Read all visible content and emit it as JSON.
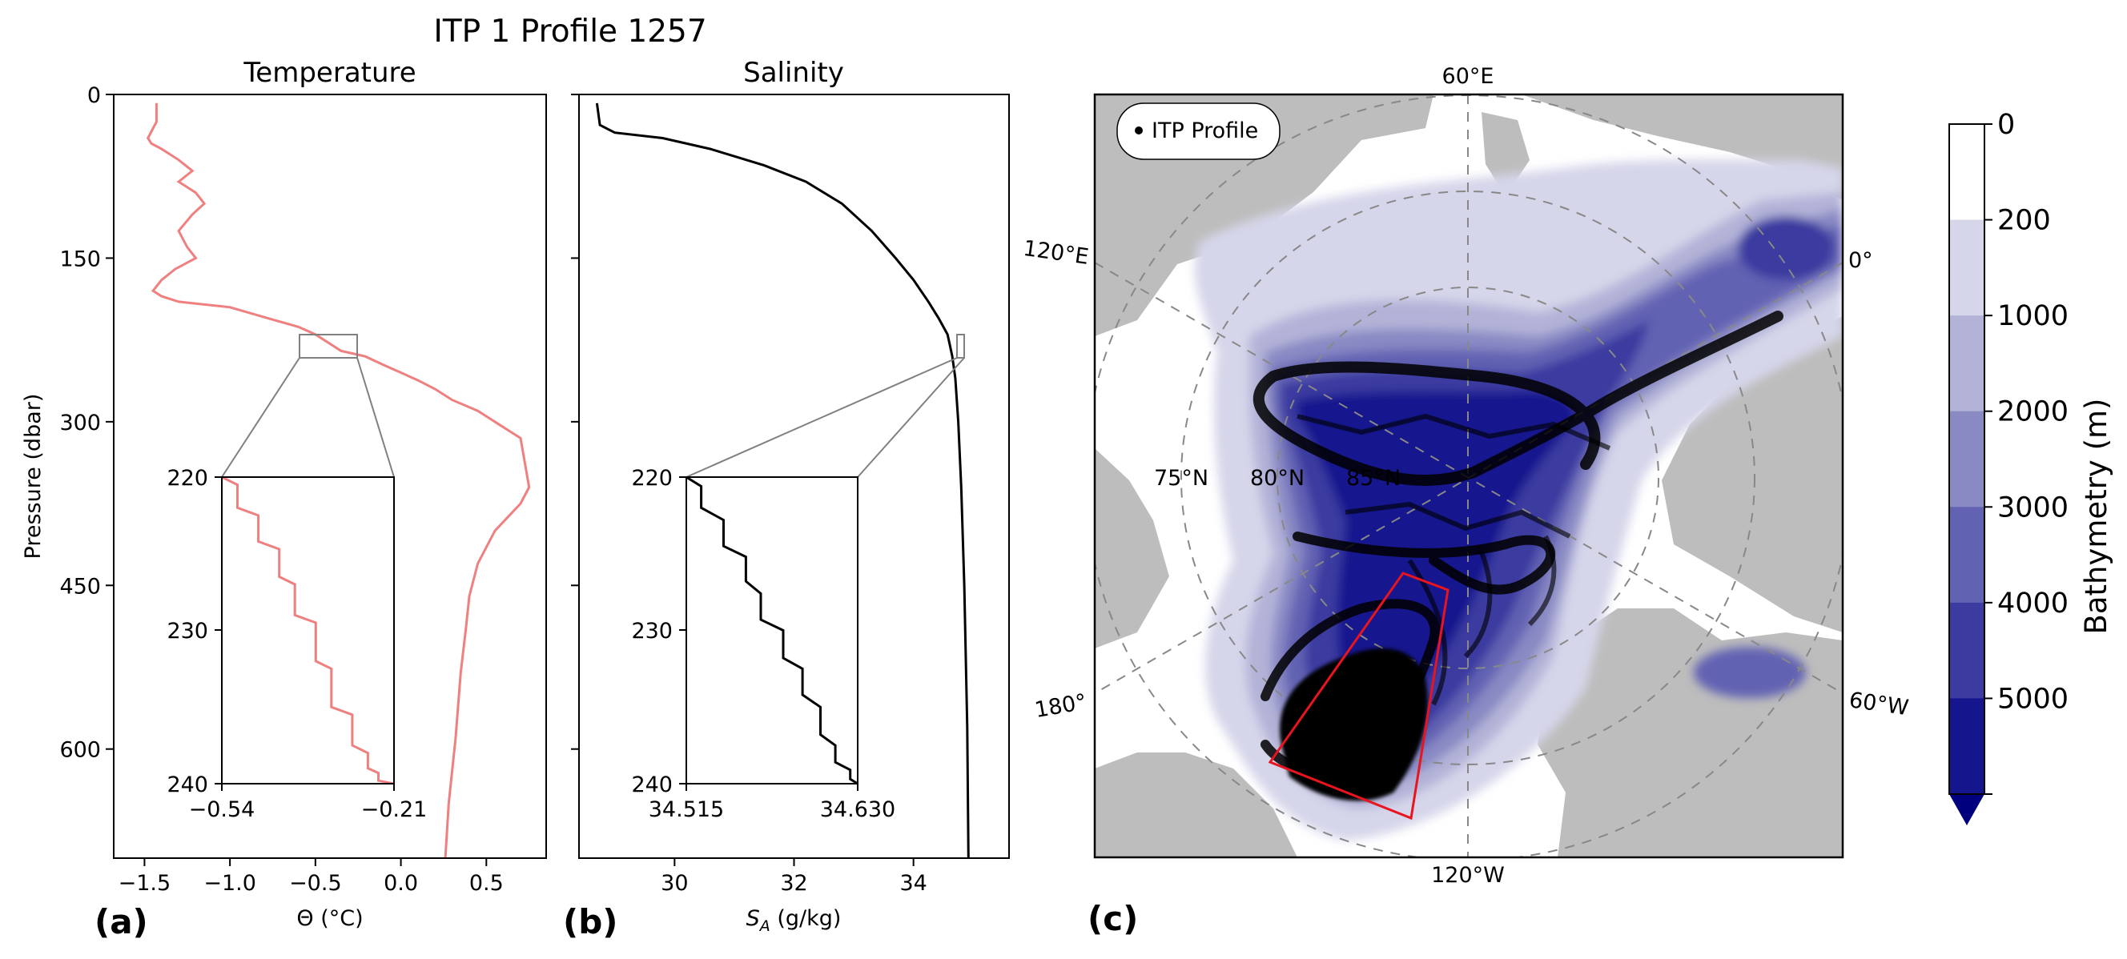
{
  "figure": {
    "suptitle": "ITP 1 Profile 1257",
    "panel_labels": [
      "(a)",
      "(b)",
      "(c)"
    ]
  },
  "colors": {
    "temperature_line": "#f07f7f",
    "salinity_line": "#000000",
    "inset_connector": "#808080",
    "land": "#bdbdbd",
    "region_box": "#e8141e",
    "track_points": "#000000"
  },
  "chart_data": [
    {
      "type": "line",
      "panel": "(a)",
      "title": "Temperature",
      "xlabel": "Θ (°C)",
      "ylabel": "Pressure (dbar)",
      "xlim": [
        -1.68,
        0.85
      ],
      "ylim": [
        700,
        0
      ],
      "xticks": [
        -1.5,
        -1.0,
        -0.5,
        0.0,
        0.5
      ],
      "xtick_labels": [
        "−1.5",
        "−1.0",
        "−0.5",
        "0.0",
        "0.5"
      ],
      "yticks": [
        0,
        150,
        300,
        450,
        600
      ],
      "ytick_labels": [
        "0",
        "150",
        "300",
        "450",
        "600"
      ],
      "series": [
        {
          "color": "#f07f7f",
          "x": [
            -1.43,
            -1.43,
            -1.48,
            -1.46,
            -1.4,
            -1.3,
            -1.22,
            -1.3,
            -1.2,
            -1.15,
            -1.22,
            -1.3,
            -1.25,
            -1.2,
            -1.32,
            -1.4,
            -1.45,
            -1.4,
            -1.3,
            -1.0,
            -0.78,
            -0.6,
            -0.5,
            -0.35,
            -0.21,
            -0.1,
            0.0,
            0.1,
            0.2,
            0.3,
            0.45,
            0.6,
            0.7,
            0.75,
            0.7,
            0.55,
            0.45,
            0.4,
            0.38,
            0.35,
            0.32,
            0.28,
            0.26
          ],
          "y": [
            8,
            25,
            40,
            45,
            50,
            60,
            70,
            80,
            90,
            100,
            110,
            125,
            140,
            150,
            160,
            170,
            180,
            185,
            190,
            195,
            205,
            213,
            220,
            235,
            240,
            248,
            255,
            262,
            270,
            280,
            290,
            305,
            315,
            360,
            375,
            400,
            430,
            460,
            490,
            530,
            590,
            650,
            700
          ]
        }
      ],
      "inset": {
        "xlim": [
          -0.54,
          -0.21
        ],
        "ylim": [
          240,
          220
        ],
        "xtick_labels": [
          "−0.54",
          "−0.21"
        ],
        "ytick_labels": [
          "220",
          "230",
          "240"
        ],
        "x": [
          -0.54,
          -0.51,
          -0.51,
          -0.47,
          -0.47,
          -0.43,
          -0.43,
          -0.4,
          -0.4,
          -0.36,
          -0.36,
          -0.33,
          -0.33,
          -0.29,
          -0.29,
          -0.26,
          -0.26,
          -0.24,
          -0.24,
          -0.21
        ],
        "y": [
          220,
          220.5,
          222,
          222.5,
          224.2,
          224.7,
          226.5,
          227,
          229,
          229.5,
          232,
          232.5,
          235,
          235.5,
          237.5,
          238,
          239,
          239.3,
          239.8,
          240
        ]
      }
    },
    {
      "type": "line",
      "panel": "(b)",
      "title": "Salinity",
      "xlabel": "S_A (g/kg)",
      "xlim": [
        28.4,
        35.6
      ],
      "ylim": [
        700,
        0
      ],
      "xticks": [
        30,
        32,
        34
      ],
      "xtick_labels": [
        "30",
        "32",
        "34"
      ],
      "yticks": [
        0,
        150,
        300,
        450,
        600
      ],
      "series": [
        {
          "color": "#000000",
          "x": [
            28.7,
            28.75,
            29.0,
            29.8,
            30.6,
            31.5,
            32.2,
            32.8,
            33.3,
            33.7,
            34.0,
            34.25,
            34.42,
            34.52,
            34.57,
            34.61,
            34.65,
            34.7,
            34.75,
            34.8,
            34.85,
            34.9,
            34.92
          ],
          "y": [
            8,
            28,
            35,
            40,
            50,
            65,
            80,
            100,
            125,
            150,
            170,
            190,
            205,
            215,
            220,
            230,
            240,
            260,
            300,
            360,
            450,
            580,
            700
          ]
        }
      ],
      "inset": {
        "xlim": [
          34.515,
          34.63
        ],
        "ylim": [
          240,
          220
        ],
        "xtick_labels": [
          "34.515",
          "34.630"
        ],
        "ytick_labels": [
          "220",
          "230",
          "240"
        ],
        "x": [
          34.515,
          34.525,
          34.525,
          34.54,
          34.54,
          34.555,
          34.555,
          34.565,
          34.565,
          34.58,
          34.58,
          34.593,
          34.593,
          34.605,
          34.605,
          34.615,
          34.615,
          34.625,
          34.625,
          34.63
        ],
        "y": [
          220,
          220.6,
          222,
          222.8,
          224.5,
          225.2,
          226.8,
          227.6,
          229.3,
          230,
          231.8,
          232.5,
          234.2,
          235,
          236.8,
          237.5,
          238.6,
          239.1,
          239.7,
          240
        ]
      }
    },
    {
      "type": "map",
      "panel": "(c)",
      "legend_label": "ITP Profile",
      "legend_placement": "top-left",
      "meridian_labels": [
        "60°E",
        "0°",
        "60°W",
        "120°W",
        "180°",
        "120°E"
      ],
      "parallel_labels": [
        "75°N",
        "80°N",
        "85°N"
      ],
      "colorbar": {
        "label": "Bathymetry (m)",
        "ticks": [
          "0",
          "200",
          "1000",
          "2000",
          "3000",
          "4000",
          "5000"
        ],
        "colors": [
          "#ffffff",
          "#d5d6ea",
          "#b3b3d8",
          "#8989c4",
          "#6262b3",
          "#3b3ba0",
          "#15158e",
          "#00007f"
        ]
      }
    }
  ]
}
